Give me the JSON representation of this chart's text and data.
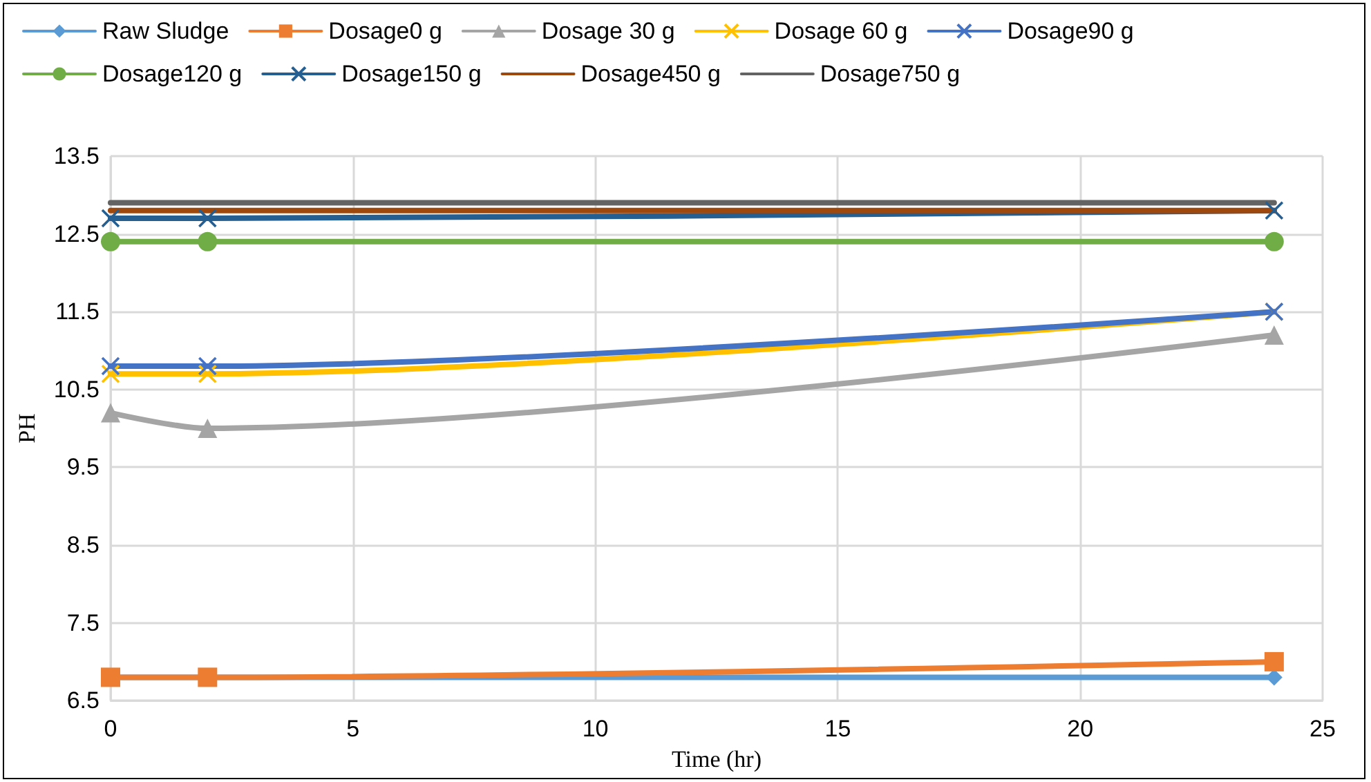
{
  "chart_data": {
    "type": "line",
    "xlabel": "Time (hr)",
    "ylabel": "PH",
    "x": [
      0,
      2,
      24
    ],
    "series": [
      {
        "name": "Raw Sludge",
        "color": "#5b9bd5",
        "marker": "diamond",
        "values": [
          6.8,
          6.8,
          6.8
        ]
      },
      {
        "name": "Dosage0 g",
        "color": "#ed7d31",
        "marker": "square",
        "values": [
          6.8,
          6.8,
          7.0
        ]
      },
      {
        "name": "Dosage 30 g",
        "color": "#a5a5a5",
        "marker": "triangle",
        "values": [
          10.2,
          10.0,
          11.2
        ]
      },
      {
        "name": "Dosage 60 g",
        "color": "#ffc000",
        "marker": "cross",
        "values": [
          10.7,
          10.7,
          11.5
        ]
      },
      {
        "name": "Dosage90 g",
        "color": "#4472c4",
        "marker": "cross",
        "values": [
          10.8,
          10.8,
          11.5
        ]
      },
      {
        "name": "Dosage120 g",
        "color": "#70ad47",
        "marker": "circle",
        "values": [
          12.4,
          12.4,
          12.4
        ]
      },
      {
        "name": "Dosage150 g",
        "color": "#255e91",
        "marker": "cross",
        "values": [
          12.7,
          12.7,
          12.8
        ]
      },
      {
        "name": "Dosage450 g",
        "color": "#9e480e",
        "marker": "none",
        "values": [
          12.8,
          12.8,
          12.8
        ]
      },
      {
        "name": "Dosage750 g",
        "color": "#636363",
        "marker": "none",
        "values": [
          12.9,
          12.9,
          12.9
        ]
      }
    ],
    "xlim": [
      0,
      25
    ],
    "xticks": [
      0,
      5,
      10,
      15,
      20,
      25
    ],
    "ylim": [
      6.5,
      13.5
    ],
    "yticks": [
      6.5,
      7.5,
      8.5,
      9.5,
      10.5,
      11.5,
      12.5,
      13.5
    ],
    "grid": true,
    "legend": "top",
    "line_style": "solid"
  }
}
